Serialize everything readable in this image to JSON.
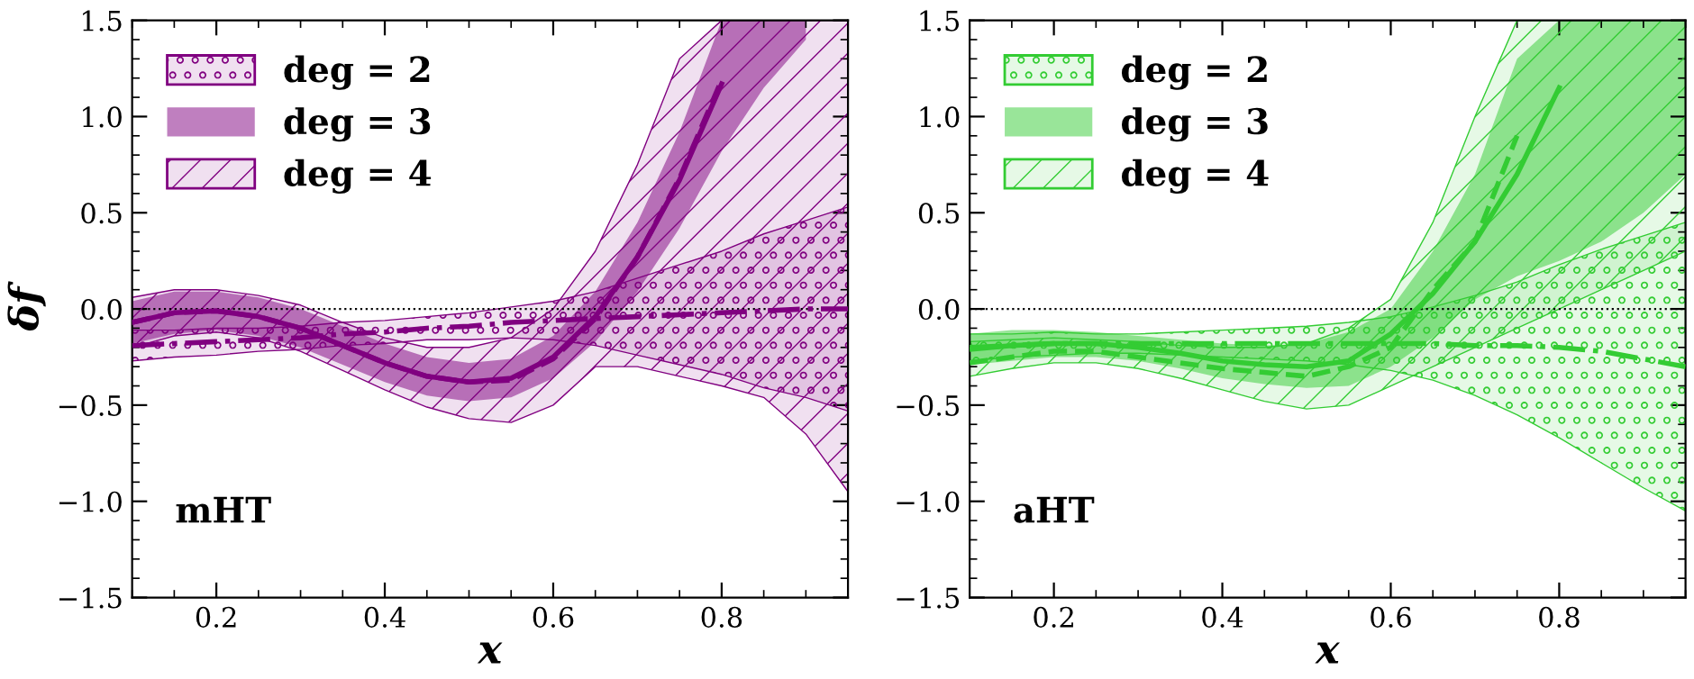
{
  "chart_data": [
    {
      "type": "line",
      "xlabel": "x",
      "ylabel": "δf",
      "annotations": [
        "mHT"
      ],
      "legend": "top left",
      "grid": false,
      "xlim": [
        0.1,
        0.95
      ],
      "xticks": [
        0.2,
        0.4,
        0.6,
        0.8
      ],
      "ylim": [
        -1.5,
        1.5
      ],
      "yticks": [
        {
          "value": -1.5,
          "label": "−1.5"
        },
        {
          "value": -1.0,
          "label": "−1.0"
        },
        {
          "value": -0.5,
          "label": "−0.5"
        },
        {
          "value": 0.0,
          "label": "0.0"
        },
        {
          "value": 0.5,
          "label": "0.5"
        },
        {
          "value": 1.0,
          "label": "1.0"
        },
        {
          "value": 1.5,
          "label": "1.5"
        }
      ],
      "ref_lines": [
        {
          "axis": "y",
          "value": 0,
          "color": "#000000",
          "line_style": "dotted"
        }
      ],
      "x": [
        0.1,
        0.15,
        0.2,
        0.25,
        0.3,
        0.35,
        0.4,
        0.45,
        0.5,
        0.55,
        0.6,
        0.65,
        0.7,
        0.75,
        0.8,
        0.85,
        0.9,
        0.95
      ],
      "series": [
        {
          "name": "deg = 2",
          "color": "#800080",
          "line_style": "dashdot",
          "values": [
            -0.19,
            -0.18,
            -0.17,
            -0.16,
            -0.15,
            -0.13,
            -0.12,
            -0.1,
            -0.09,
            -0.07,
            -0.06,
            -0.05,
            -0.04,
            -0.03,
            -0.02,
            -0.01,
            0.0,
            0.0
          ],
          "lower": [
            -0.27,
            -0.25,
            -0.24,
            -0.22,
            -0.21,
            -0.19,
            -0.18,
            -0.16,
            -0.16,
            -0.15,
            -0.16,
            -0.19,
            -0.24,
            -0.29,
            -0.34,
            -0.41,
            -0.46,
            -0.53
          ],
          "upper": [
            -0.11,
            -0.11,
            -0.1,
            -0.1,
            -0.09,
            -0.07,
            -0.06,
            -0.04,
            -0.02,
            0.01,
            0.04,
            0.09,
            0.16,
            0.23,
            0.3,
            0.39,
            0.46,
            0.53
          ]
        },
        {
          "name": "deg = 3",
          "color": "#800080",
          "line_style": "solid",
          "x": [
            0.1,
            0.15,
            0.2,
            0.25,
            0.3,
            0.35,
            0.4,
            0.45,
            0.5,
            0.55,
            0.6,
            0.65,
            0.7,
            0.75,
            0.8,
            0.85,
            0.9
          ],
          "values": [
            -0.07,
            -0.02,
            -0.01,
            -0.04,
            -0.1,
            -0.19,
            -0.28,
            -0.35,
            -0.38,
            -0.36,
            -0.25,
            -0.04,
            0.27,
            0.67,
            1.17,
            null,
            null
          ],
          "lower": [
            -0.18,
            -0.13,
            -0.11,
            -0.14,
            -0.2,
            -0.29,
            -0.38,
            -0.45,
            -0.48,
            -0.46,
            -0.36,
            -0.17,
            0.09,
            0.42,
            0.82,
            1.15,
            1.4
          ],
          "upper": [
            0.04,
            0.09,
            0.09,
            0.06,
            0.0,
            -0.09,
            -0.18,
            -0.25,
            -0.28,
            -0.26,
            -0.14,
            0.09,
            0.45,
            0.92,
            1.5,
            1.5,
            1.5
          ]
        },
        {
          "name": "deg = 4",
          "color": "#800080",
          "line_style": "dashed",
          "values": [
            -0.07,
            -0.02,
            -0.01,
            -0.04,
            -0.1,
            -0.19,
            -0.28,
            -0.35,
            -0.38,
            -0.37,
            -0.26,
            -0.05,
            0.27,
            0.68,
            1.19,
            null,
            null,
            null
          ],
          "lower": [
            -0.2,
            -0.14,
            -0.12,
            -0.15,
            -0.22,
            -0.32,
            -0.42,
            -0.51,
            -0.57,
            -0.59,
            -0.5,
            -0.3,
            -0.3,
            -0.35,
            -0.4,
            -0.46,
            -0.65,
            -0.95
          ],
          "upper": [
            0.06,
            0.1,
            0.1,
            0.07,
            0.02,
            -0.07,
            -0.15,
            -0.2,
            -0.2,
            -0.15,
            0.0,
            0.3,
            0.75,
            1.3,
            1.5,
            1.5,
            1.5,
            1.5
          ]
        }
      ]
    },
    {
      "type": "line",
      "xlabel": "x",
      "annotations": [
        "aHT"
      ],
      "legend": "top left",
      "grid": false,
      "xlim": [
        0.1,
        0.95
      ],
      "xticks": [
        0.2,
        0.4,
        0.6,
        0.8
      ],
      "ylim": [
        -1.5,
        1.5
      ],
      "yticks": [
        {
          "value": -1.5,
          "label": "−1.5"
        },
        {
          "value": -1.0,
          "label": "−1.0"
        },
        {
          "value": -0.5,
          "label": "−0.5"
        },
        {
          "value": 0.0,
          "label": "0.0"
        },
        {
          "value": 0.5,
          "label": "0.5"
        },
        {
          "value": 1.0,
          "label": "1.0"
        },
        {
          "value": 1.5,
          "label": "1.5"
        }
      ],
      "ref_lines": [
        {
          "axis": "y",
          "value": 0,
          "color": "#000000",
          "line_style": "dotted"
        }
      ],
      "x": [
        0.1,
        0.15,
        0.2,
        0.25,
        0.3,
        0.35,
        0.4,
        0.45,
        0.5,
        0.55,
        0.6,
        0.65,
        0.7,
        0.75,
        0.8,
        0.85,
        0.9,
        0.95
      ],
      "series": [
        {
          "name": "deg = 2",
          "color": "#33cc33",
          "line_style": "dashdot",
          "values": [
            -0.2,
            -0.19,
            -0.18,
            -0.18,
            -0.18,
            -0.18,
            -0.18,
            -0.18,
            -0.18,
            -0.18,
            -0.18,
            -0.18,
            -0.19,
            -0.19,
            -0.2,
            -0.22,
            -0.26,
            -0.3
          ],
          "lower": [
            -0.27,
            -0.25,
            -0.24,
            -0.23,
            -0.23,
            -0.24,
            -0.25,
            -0.26,
            -0.27,
            -0.29,
            -0.32,
            -0.37,
            -0.45,
            -0.55,
            -0.67,
            -0.8,
            -0.93,
            -1.05
          ],
          "upper": [
            -0.13,
            -0.13,
            -0.12,
            -0.13,
            -0.13,
            -0.12,
            -0.11,
            -0.1,
            -0.09,
            -0.07,
            -0.04,
            0.01,
            0.07,
            0.14,
            0.23,
            0.31,
            0.38,
            0.45
          ]
        },
        {
          "name": "deg = 3",
          "color": "#33cc33",
          "line_style": "solid",
          "values": [
            -0.21,
            -0.19,
            -0.18,
            -0.18,
            -0.2,
            -0.23,
            -0.27,
            -0.29,
            -0.3,
            -0.27,
            -0.13,
            0.08,
            0.35,
            0.7,
            1.15,
            null,
            null,
            null
          ],
          "lower": [
            -0.29,
            -0.27,
            -0.25,
            -0.25,
            -0.27,
            -0.31,
            -0.36,
            -0.39,
            -0.41,
            -0.4,
            -0.3,
            -0.15,
            0.05,
            0.17,
            0.25,
            0.35,
            0.5,
            0.7
          ],
          "upper": [
            -0.13,
            -0.11,
            -0.11,
            -0.12,
            -0.14,
            -0.16,
            -0.18,
            -0.19,
            -0.18,
            -0.12,
            0.0,
            0.3,
            0.7,
            1.3,
            1.5,
            1.5,
            1.5,
            1.5
          ]
        },
        {
          "name": "deg = 4",
          "color": "#33cc33",
          "line_style": "dashed",
          "values": [
            -0.28,
            -0.25,
            -0.22,
            -0.22,
            -0.25,
            -0.28,
            -0.31,
            -0.33,
            -0.35,
            -0.3,
            -0.2,
            0.1,
            0.35,
            0.9,
            null,
            null,
            null,
            null
          ],
          "lower": [
            -0.35,
            -0.31,
            -0.28,
            -0.28,
            -0.31,
            -0.36,
            -0.42,
            -0.48,
            -0.52,
            -0.5,
            -0.4,
            -0.3,
            -0.2,
            -0.1,
            0.0,
            0.1,
            0.2,
            0.3
          ],
          "upper": [
            -0.17,
            -0.16,
            -0.15,
            -0.16,
            -0.17,
            -0.19,
            -0.2,
            -0.2,
            -0.18,
            -0.1,
            0.05,
            0.45,
            1.0,
            1.5,
            1.5,
            1.5,
            1.5,
            1.5
          ]
        }
      ]
    }
  ]
}
